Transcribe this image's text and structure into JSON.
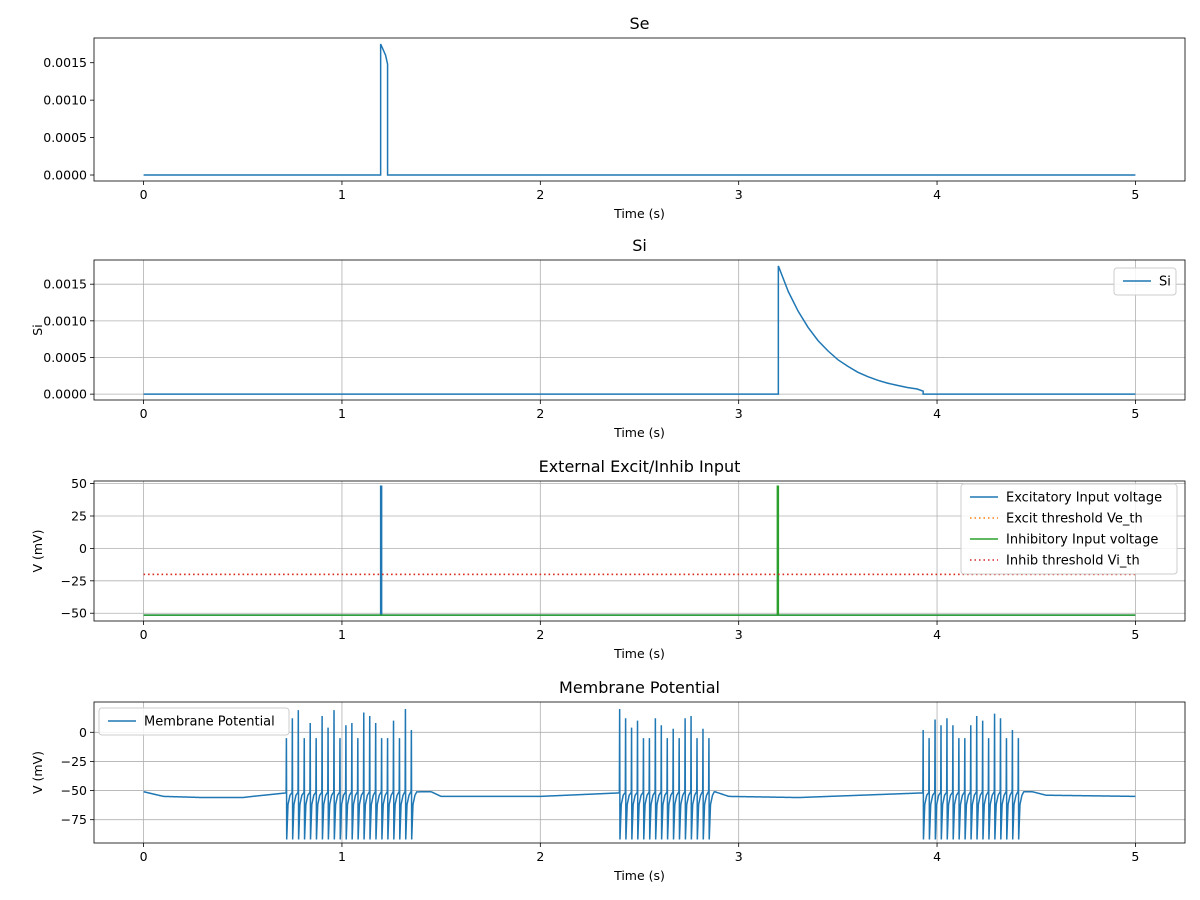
{
  "chart_data": [
    {
      "type": "line",
      "title": "Se",
      "xlabel": "Time (s)",
      "ylabel": "",
      "xlim": [
        -0.25,
        5.25
      ],
      "ylim": [
        -8e-05,
        0.00183
      ],
      "xticks": [
        0,
        1,
        2,
        3,
        4,
        5
      ],
      "xtick_labels": [
        "0",
        "1",
        "2",
        "3",
        "4",
        "5"
      ],
      "yticks": [
        0,
        0.0005,
        0.001,
        0.0015
      ],
      "ytick_labels": [
        "0.0000",
        "0.0005",
        "0.0010",
        "0.0015"
      ],
      "grid": false,
      "legend": null,
      "series": [
        {
          "name": "",
          "color": "#1f77b4",
          "style": "solid",
          "x": [
            0,
            1.195,
            1.195,
            1.2,
            1.22,
            1.23,
            1.23,
            5
          ],
          "y": [
            0,
            0,
            0.00175,
            0.00172,
            0.0016,
            0.00148,
            0,
            0
          ]
        }
      ]
    },
    {
      "type": "line",
      "title": "Si",
      "xlabel": "Time (s)",
      "ylabel": "Si",
      "xlim": [
        -0.25,
        5.25
      ],
      "ylim": [
        -8e-05,
        0.00183
      ],
      "xticks": [
        0,
        1,
        2,
        3,
        4,
        5
      ],
      "xtick_labels": [
        "0",
        "1",
        "2",
        "3",
        "4",
        "5"
      ],
      "yticks": [
        0,
        0.0005,
        0.001,
        0.0015
      ],
      "ytick_labels": [
        "0.0000",
        "0.0005",
        "0.0010",
        "0.0015"
      ],
      "grid": true,
      "legend": "top-right",
      "series": [
        {
          "name": "Si",
          "color": "#1f77b4",
          "style": "solid",
          "x": [
            0,
            3.2,
            3.2,
            3.25,
            3.3,
            3.35,
            3.4,
            3.45,
            3.5,
            3.55,
            3.6,
            3.65,
            3.7,
            3.75,
            3.8,
            3.85,
            3.9,
            3.93,
            3.93,
            5
          ],
          "y": [
            0,
            0,
            0.00175,
            0.0014,
            0.00113,
            0.00091,
            0.00073,
            0.00059,
            0.00047,
            0.00038,
            0.0003,
            0.00024,
            0.00019,
            0.00015,
            0.00012,
            9e-05,
            7e-05,
            4e-05,
            0,
            0
          ]
        }
      ]
    },
    {
      "type": "line",
      "title": "External Excit/Inhib Input",
      "xlabel": "Time (s)",
      "ylabel": "V (mV)",
      "xlim": [
        -0.25,
        5.25
      ],
      "ylim": [
        -56,
        52
      ],
      "xticks": [
        0,
        1,
        2,
        3,
        4,
        5
      ],
      "xtick_labels": [
        "0",
        "1",
        "2",
        "3",
        "4",
        "5"
      ],
      "yticks": [
        -50,
        -25,
        0,
        25,
        50
      ],
      "ytick_labels": [
        "−50",
        "−25",
        "0",
        "25",
        "50"
      ],
      "grid": true,
      "legend": "top-right",
      "series": [
        {
          "name": "Excitatory Input voltage",
          "color": "#1f77b4",
          "style": "solid",
          "x": [
            0,
            1.195,
            1.195,
            1.2,
            1.2,
            5
          ],
          "y": [
            -51.5,
            -51.5,
            48,
            48,
            -51.5,
            -51.5
          ]
        },
        {
          "name": "Excit threshold Ve_th",
          "color": "#ff7f0e",
          "style": "dotted",
          "x": [
            0,
            5
          ],
          "y": [
            -20,
            -20
          ]
        },
        {
          "name": "Inhibitory Input voltage",
          "color": "#2ca02c",
          "style": "solid",
          "x": [
            0,
            3.195,
            3.195,
            3.2,
            3.2,
            5
          ],
          "y": [
            -51.5,
            -51.5,
            48,
            48,
            -51.5,
            -51.5
          ]
        },
        {
          "name": "Inhib threshold Vi_th",
          "color": "#d62728",
          "style": "dotted",
          "x": [
            0,
            5
          ],
          "y": [
            -20,
            -20
          ]
        }
      ]
    },
    {
      "type": "line",
      "title": "Membrane Potential",
      "xlabel": "Time (s)",
      "ylabel": "V (mV)",
      "xlim": [
        -0.25,
        5.25
      ],
      "ylim": [
        -95,
        26
      ],
      "xticks": [
        0,
        1,
        2,
        3,
        4,
        5
      ],
      "xtick_labels": [
        "0",
        "1",
        "2",
        "3",
        "4",
        "5"
      ],
      "yticks": [
        -75,
        -50,
        -25,
        0
      ],
      "ytick_labels": [
        "−75",
        "−50",
        "−25",
        "0"
      ],
      "grid": true,
      "legend": "top-left",
      "series": [
        {
          "name": "Membrane Potential",
          "color": "#1f77b4",
          "style": "solid",
          "baseline": [
            [
              0,
              -51
            ],
            [
              0.1,
              -55
            ],
            [
              0.3,
              -56
            ],
            [
              0.5,
              -56
            ],
            [
              0.55,
              -55
            ],
            [
              0.72,
              -52
            ],
            [
              1.45,
              -51
            ],
            [
              1.5,
              -55
            ],
            [
              2.0,
              -55
            ],
            [
              2.4,
              -52
            ],
            [
              2.88,
              -51
            ],
            [
              2.95,
              -55
            ],
            [
              3.3,
              -56
            ],
            [
              3.93,
              -52
            ],
            [
              4.48,
              -51
            ],
            [
              4.55,
              -54
            ],
            [
              5.0,
              -55
            ]
          ],
          "bursts": [
            {
              "spike_times": [
                0.72,
                0.75,
                0.78,
                0.81,
                0.84,
                0.87,
                0.9,
                0.93,
                0.96,
                0.99,
                1.02,
                1.05,
                1.08,
                1.11,
                1.14,
                1.17,
                1.2,
                1.23,
                1.26,
                1.29,
                1.32,
                1.35
              ],
              "peaks": [
                -5,
                12,
                19,
                -5,
                8,
                -5,
                14,
                4,
                19,
                -5,
                6,
                8,
                -5,
                17,
                14,
                8,
                -5,
                -5,
                10,
                -5,
                20,
                2
              ],
              "trough": -92
            },
            {
              "spike_times": [
                2.4,
                2.43,
                2.46,
                2.49,
                2.52,
                2.55,
                2.58,
                2.61,
                2.64,
                2.67,
                2.7,
                2.73,
                2.76,
                2.79,
                2.82,
                2.85
              ],
              "peaks": [
                20,
                12,
                4,
                10,
                -5,
                -5,
                12,
                6,
                -5,
                3,
                -5,
                12,
                14,
                -5,
                3,
                -5
              ],
              "trough": -92
            },
            {
              "spike_times": [
                3.93,
                3.96,
                3.99,
                4.02,
                4.05,
                4.08,
                4.11,
                4.14,
                4.17,
                4.2,
                4.23,
                4.26,
                4.29,
                4.32,
                4.35,
                4.38,
                4.41
              ],
              "peaks": [
                2,
                -5,
                11,
                6,
                12,
                6,
                -5,
                -5,
                6,
                14,
                10,
                -5,
                16,
                12,
                -5,
                2,
                -5
              ],
              "trough": -92
            }
          ]
        }
      ]
    }
  ]
}
